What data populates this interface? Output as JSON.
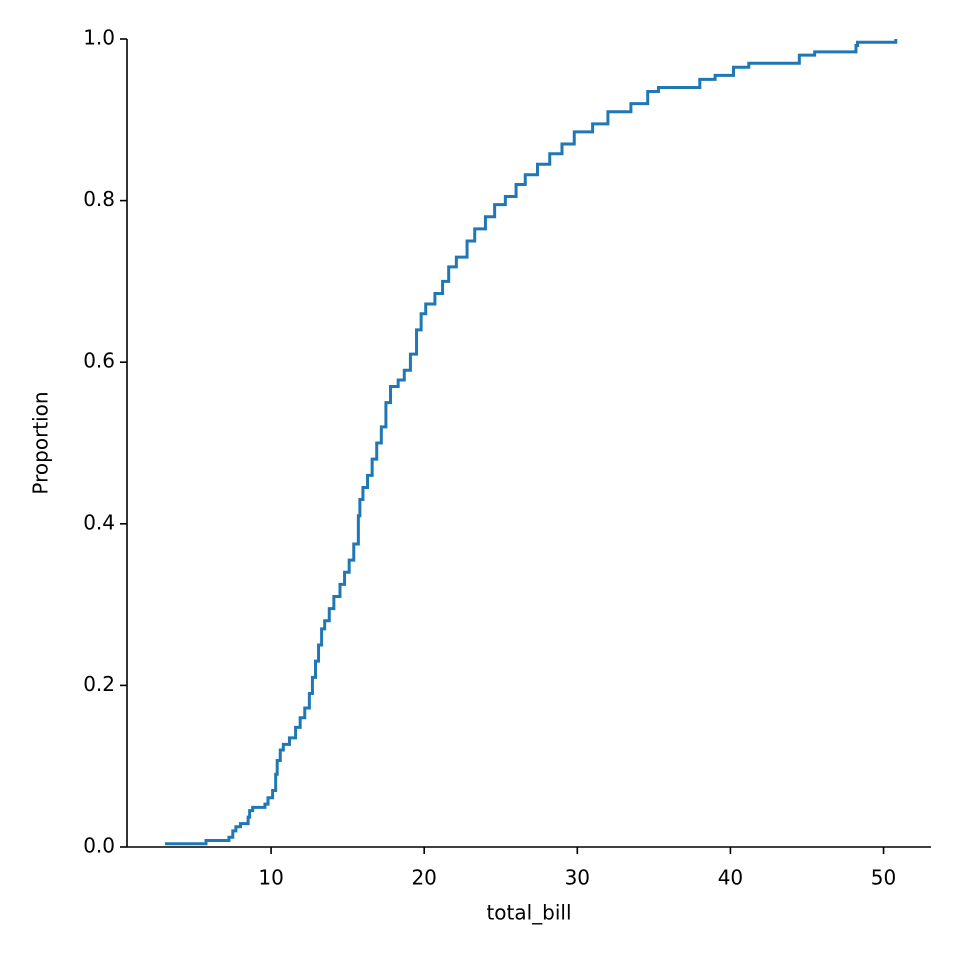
{
  "chart_data": {
    "type": "ecdf",
    "x_label": "total_bill",
    "y_label": "Proportion",
    "series": [
      {
        "color": "#1f77b4",
        "x": [
          3.07,
          5.75,
          7.25,
          7.5,
          7.7,
          8.0,
          8.5,
          8.6,
          8.8,
          9.6,
          9.8,
          10.1,
          10.3,
          10.4,
          10.6,
          10.8,
          11.2,
          11.6,
          11.9,
          12.2,
          12.5,
          12.7,
          12.9,
          13.1,
          13.3,
          13.5,
          13.8,
          14.1,
          14.5,
          14.8,
          15.1,
          15.4,
          15.7,
          15.8,
          16.0,
          16.3,
          16.6,
          16.9,
          17.2,
          17.5,
          17.8,
          18.3,
          18.7,
          19.1,
          19.5,
          19.8,
          20.1,
          20.7,
          21.2,
          21.6,
          22.1,
          22.8,
          23.3,
          24.0,
          24.6,
          25.3,
          26.0,
          26.6,
          27.4,
          28.2,
          29.0,
          29.8,
          31.0,
          32.0,
          33.5,
          34.6,
          35.3,
          38.0,
          39.0,
          40.2,
          41.2,
          44.5,
          45.5,
          48.2,
          48.3,
          50.8
        ],
        "values": [
          0.004,
          0.008,
          0.012,
          0.02,
          0.025,
          0.029,
          0.037,
          0.045,
          0.049,
          0.053,
          0.061,
          0.07,
          0.09,
          0.107,
          0.12,
          0.127,
          0.135,
          0.148,
          0.16,
          0.172,
          0.19,
          0.21,
          0.23,
          0.25,
          0.27,
          0.28,
          0.295,
          0.31,
          0.325,
          0.34,
          0.355,
          0.375,
          0.41,
          0.43,
          0.445,
          0.46,
          0.48,
          0.5,
          0.52,
          0.55,
          0.57,
          0.578,
          0.59,
          0.61,
          0.64,
          0.66,
          0.672,
          0.685,
          0.7,
          0.718,
          0.73,
          0.75,
          0.765,
          0.78,
          0.795,
          0.805,
          0.82,
          0.832,
          0.845,
          0.858,
          0.87,
          0.885,
          0.895,
          0.91,
          0.92,
          0.935,
          0.94,
          0.95,
          0.955,
          0.965,
          0.97,
          0.98,
          0.984,
          0.992,
          0.996,
          1.0
        ]
      }
    ],
    "xlim": [
      0.59,
      53.1
    ],
    "xticks": [
      10,
      20,
      30,
      40,
      50
    ],
    "ylim": [
      0,
      1
    ],
    "yticks": [
      {
        "value": 0,
        "label": "0.0"
      },
      0.2,
      0.4,
      0.6,
      0.8,
      {
        "value": 1,
        "label": "1.0"
      }
    ],
    "grid": false
  }
}
